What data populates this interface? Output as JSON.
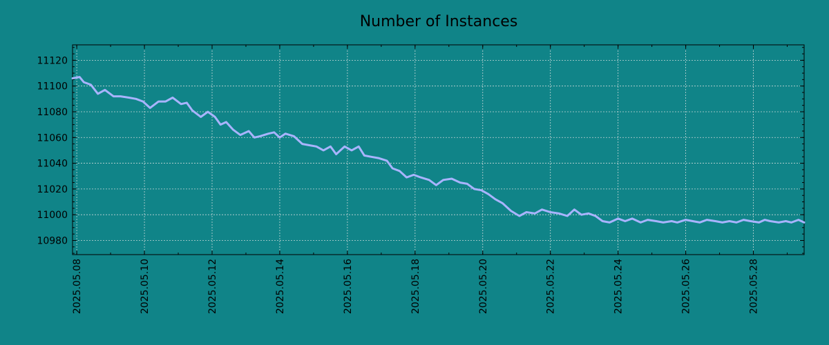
{
  "chart_data": {
    "type": "line",
    "title": "Number of Instances",
    "xlabel": "",
    "ylabel": "",
    "x_ticks": [
      "2025.05.08",
      "2025.05.10",
      "2025.05.12",
      "2025.05.14",
      "2025.05.16",
      "2025.05.18",
      "2025.05.20",
      "2025.05.22",
      "2025.05.24",
      "2025.05.26",
      "2025.05.28"
    ],
    "y_ticks": [
      10980,
      11000,
      11020,
      11040,
      11060,
      11080,
      11100,
      11120
    ],
    "xlim": [
      "2025-05-07T21:00",
      "2025-05-29T12:00"
    ],
    "ylim": [
      10969,
      11132
    ],
    "grid": true,
    "legend": "none",
    "colors": {
      "background": "#108488",
      "line": "#a9b4ff",
      "grid": "#c8d8d8"
    },
    "series": [
      {
        "x": [
          "2025-05-07T21:00",
          "2025-05-08T02:00",
          "2025-05-08T05:00",
          "2025-05-08T10:00",
          "2025-05-08T15:00",
          "2025-05-08T20:00",
          "2025-05-09T02:00",
          "2025-05-09T07:00",
          "2025-05-09T13:00",
          "2025-05-09T18:00",
          "2025-05-09T23:00",
          "2025-05-10T04:00",
          "2025-05-10T10:00",
          "2025-05-10T15:00",
          "2025-05-10T20:00",
          "2025-05-11T02:00",
          "2025-05-11T06:00",
          "2025-05-11T10:00",
          "2025-05-11T16:00",
          "2025-05-11T21:00",
          "2025-05-12T02:00",
          "2025-05-12T06:00",
          "2025-05-12T10:00",
          "2025-05-12T15:00",
          "2025-05-12T20:00",
          "2025-05-13T02:00",
          "2025-05-13T06:00",
          "2025-05-13T10:00",
          "2025-05-13T16:00",
          "2025-05-13T20:00",
          "2025-05-14T00:00",
          "2025-05-14T04:00",
          "2025-05-14T10:00",
          "2025-05-14T16:00",
          "2025-05-14T21:00",
          "2025-05-15T02:00",
          "2025-05-15T07:00",
          "2025-05-15T12:00",
          "2025-05-15T16:00",
          "2025-05-15T22:00",
          "2025-05-16T03:00",
          "2025-05-16T08:00",
          "2025-05-16T12:00",
          "2025-05-16T17:00",
          "2025-05-16T22:00",
          "2025-05-17T04:00",
          "2025-05-17T08:00",
          "2025-05-17T13:00",
          "2025-05-17T18:00",
          "2025-05-17T23:00",
          "2025-05-18T04:00",
          "2025-05-18T10:00",
          "2025-05-18T15:00",
          "2025-05-18T20:00",
          "2025-05-19T02:00",
          "2025-05-19T08:00",
          "2025-05-19T13:00",
          "2025-05-19T18:00",
          "2025-05-19T23:00",
          "2025-05-20T04:00",
          "2025-05-20T09:00",
          "2025-05-20T14:00",
          "2025-05-20T20:00",
          "2025-05-21T02:00",
          "2025-05-21T07:00",
          "2025-05-21T13:00",
          "2025-05-21T18:00",
          "2025-05-22T00:00",
          "2025-05-22T06:00",
          "2025-05-22T12:00",
          "2025-05-22T17:00",
          "2025-05-22T22:00",
          "2025-05-23T03:00",
          "2025-05-23T08:00",
          "2025-05-23T13:00",
          "2025-05-23T18:00",
          "2025-05-24T00:00",
          "2025-05-24T05:00",
          "2025-05-24T10:00",
          "2025-05-24T16:00",
          "2025-05-24T21:00",
          "2025-05-25T03:00",
          "2025-05-25T08:00",
          "2025-05-25T14:00",
          "2025-05-25T18:00",
          "2025-05-26T00:00",
          "2025-05-26T05:00",
          "2025-05-26T10:00",
          "2025-05-26T15:00",
          "2025-05-26T21:00",
          "2025-05-27T02:00",
          "2025-05-27T07:00",
          "2025-05-27T12:00",
          "2025-05-27T17:00",
          "2025-05-27T22:00",
          "2025-05-28T04:00",
          "2025-05-28T08:00",
          "2025-05-28T12:00",
          "2025-05-28T18:00",
          "2025-05-28T23:00",
          "2025-05-29T03:00",
          "2025-05-29T08:00",
          "2025-05-29T12:00"
        ],
        "y": [
          11106,
          11107,
          11103,
          11101,
          11094,
          11097,
          11092,
          11092,
          11091,
          11090,
          11088,
          11083,
          11088,
          11088,
          11091,
          11086,
          11087,
          11081,
          11076,
          11080,
          11076,
          11070,
          11072,
          11066,
          11062,
          11065,
          11060,
          11061,
          11063,
          11064,
          11060,
          11063,
          11061,
          11055,
          11054,
          11053,
          11050,
          11053,
          11047,
          11053,
          11050,
          11053,
          11046,
          11045,
          11044,
          11042,
          11036,
          11034,
          11029,
          11031,
          11029,
          11027,
          11023,
          11027,
          11028,
          11025,
          11024,
          11020,
          11019,
          11016,
          11012,
          11009,
          11003,
          10999,
          11002,
          11001,
          11004,
          11002,
          11001,
          10999,
          11004,
          11000,
          11001,
          10999,
          10995,
          10994,
          10997,
          10995,
          10997,
          10994,
          10996,
          10995,
          10994,
          10995,
          10994,
          10996,
          10995,
          10994,
          10996,
          10995,
          10994,
          10995,
          10994,
          10996,
          10995,
          10994,
          10996,
          10995,
          10994,
          10995,
          10994,
          10996,
          10994
        ]
      }
    ]
  }
}
